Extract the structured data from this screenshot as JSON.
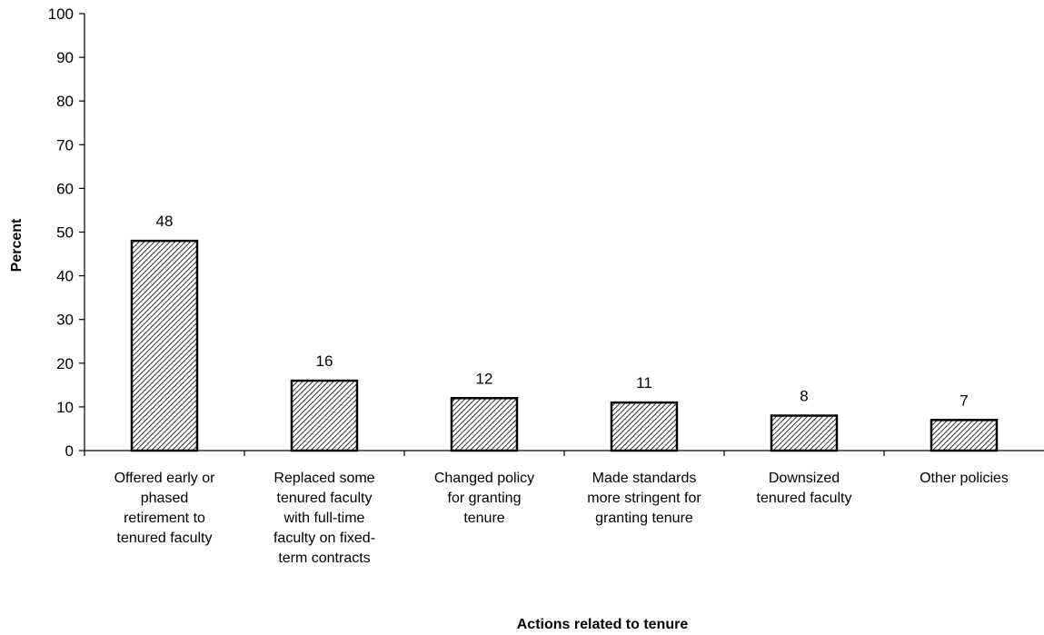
{
  "chart_data": {
    "type": "bar",
    "title": "",
    "xlabel": "Actions related to tenure",
    "ylabel": "Percent",
    "ylim": [
      0,
      100
    ],
    "yticks": [
      0,
      10,
      20,
      30,
      40,
      50,
      60,
      70,
      80,
      90,
      100
    ],
    "categories": [
      [
        "Offered early or",
        "phased",
        "retirement to",
        "tenured faculty"
      ],
      [
        "Replaced some",
        "tenured faculty",
        "with full-time",
        "faculty on fixed-",
        "term contracts"
      ],
      [
        "Changed policy",
        "for granting",
        "tenure"
      ],
      [
        "Made standards",
        "more stringent for",
        "granting tenure"
      ],
      [
        "Downsized",
        "tenured faculty"
      ],
      [
        "Other policies"
      ]
    ],
    "values": [
      48,
      16,
      12,
      11,
      8,
      7
    ],
    "data_labels": [
      "48",
      "16",
      "12",
      "11",
      "8",
      "7"
    ],
    "bar_fill": "hatched",
    "bar_color": "#000000",
    "grid": false,
    "legend": "none"
  }
}
